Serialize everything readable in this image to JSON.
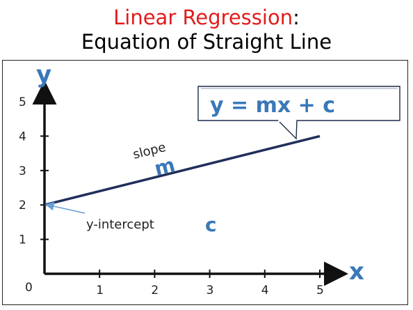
{
  "title": {
    "accent": "Linear Regression",
    "accent_suffix": ":",
    "line2": "Equation of Straight Line"
  },
  "axes": {
    "x_label": "x",
    "y_label": "y",
    "origin_label": "0",
    "x_ticks": [
      "1",
      "2",
      "3",
      "4",
      "5"
    ],
    "y_ticks": [
      "1",
      "2",
      "3",
      "4",
      "5"
    ]
  },
  "annotations": {
    "slope_label": "slope",
    "slope_symbol": "m",
    "intercept_label": "y-intercept",
    "intercept_symbol": "c",
    "equation": "y = mx + c"
  },
  "line": {
    "x1": 0,
    "y1": 2,
    "x2": 5,
    "y2": 4
  },
  "colors": {
    "accent": "#e31b1b",
    "blue": "#3a78b8",
    "line": "#1f2f5a"
  }
}
